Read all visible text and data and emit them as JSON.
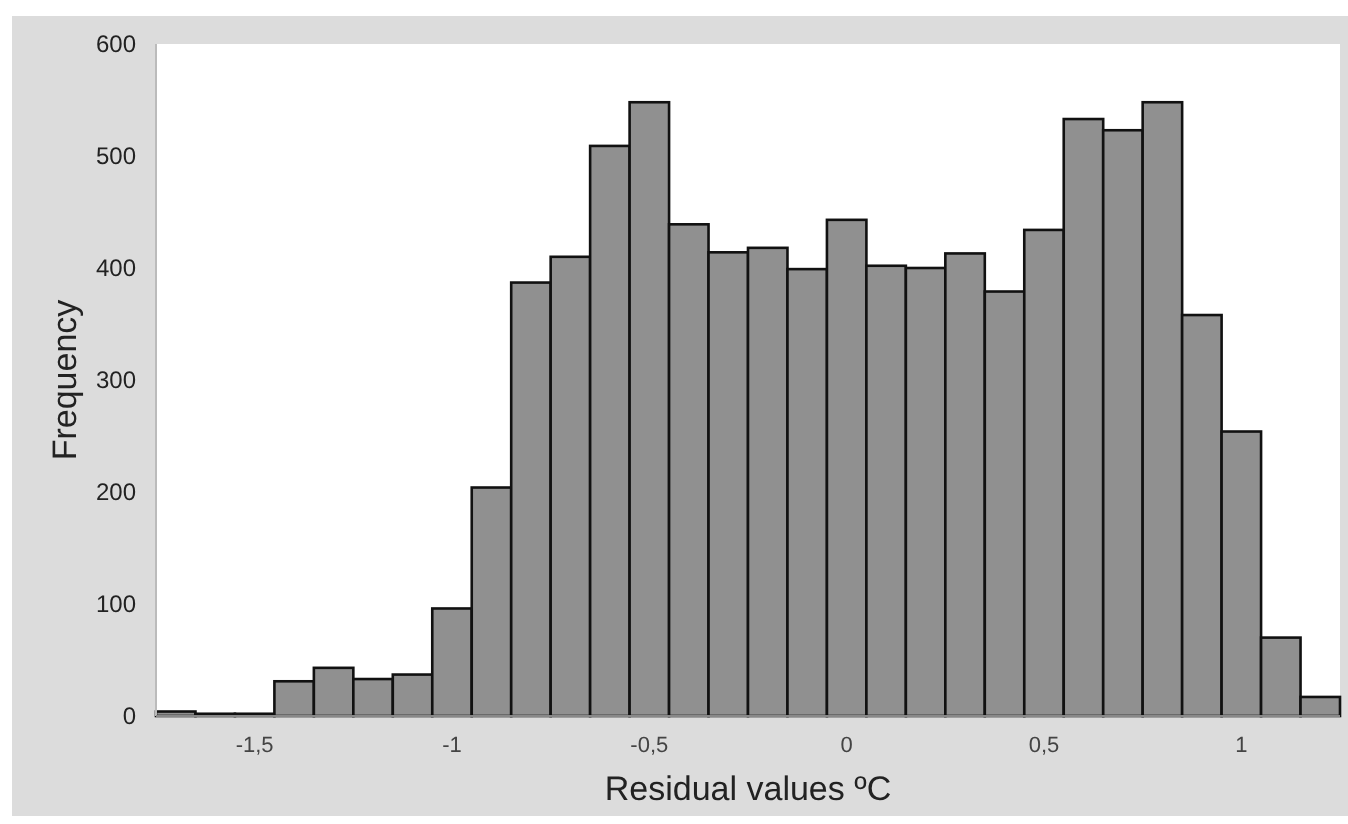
{
  "chart_data": {
    "type": "histogram",
    "xlabel": "Residual values ºC",
    "ylabel": "Frequency",
    "color": "#909090",
    "bins": [
      -1.75,
      -1.65,
      -1.55,
      -1.45,
      -1.35,
      -1.25,
      -1.15,
      -1.05,
      -0.95,
      -0.85,
      -0.75,
      -0.65,
      -0.55,
      -0.45,
      -0.35,
      -0.25,
      -0.15,
      -0.05,
      0.05,
      0.15,
      0.25,
      0.35,
      0.45,
      0.55,
      0.65,
      0.75,
      0.85,
      0.95,
      1.05,
      1.15,
      1.25
    ],
    "values": [
      4,
      2,
      2,
      31,
      43,
      33,
      37,
      96,
      204,
      387,
      410,
      509,
      548,
      439,
      414,
      418,
      399,
      443,
      402,
      400,
      413,
      379,
      434,
      533,
      523,
      548,
      358,
      254,
      70,
      17
    ],
    "xlim": [
      -1.75,
      1.25
    ],
    "ylim": [
      0,
      600
    ],
    "xticks": [
      {
        "value": -1.5,
        "label": "-1,5"
      },
      -1,
      {
        "value": -0.5,
        "label": "-0,5"
      },
      0,
      {
        "value": 0.5,
        "label": "0,5"
      },
      1
    ],
    "yticks": [
      0,
      100,
      200,
      300,
      400,
      500,
      600
    ],
    "grid": false
  }
}
